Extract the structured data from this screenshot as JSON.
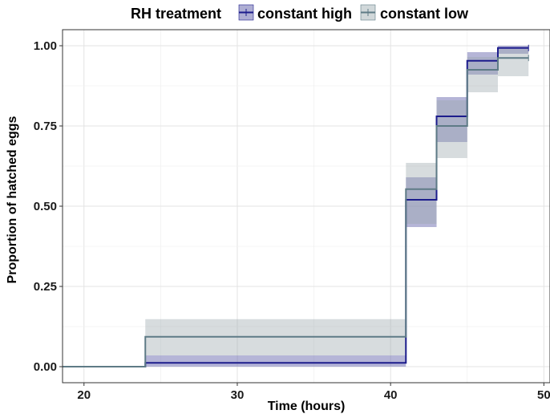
{
  "chart_data": {
    "type": "line",
    "title": "",
    "xlabel": "Time (hours)",
    "ylabel": "Proportion of hatched eggs",
    "xlim": [
      18.6,
      50.4
    ],
    "ylim": [
      -0.05,
      1.05
    ],
    "x_ticks": [
      20,
      30,
      40,
      50
    ],
    "x_tick_labels": [
      "20",
      "30",
      "40",
      "50"
    ],
    "y_ticks": [
      0,
      0.25,
      0.5,
      0.75,
      1.0
    ],
    "y_tick_labels": [
      "0.00",
      "0.25",
      "0.50",
      "0.75",
      "1.00"
    ],
    "grid": true,
    "legend_position": "top",
    "legend_title": "RH treatment",
    "series": [
      {
        "name": "constant high",
        "color": "#1c1c8c",
        "band_color": "#6b6baf",
        "x": [
          18.6,
          24,
          41,
          43,
          45,
          47,
          49
        ],
        "y": [
          0.0,
          0.012,
          0.52,
          0.78,
          0.953,
          0.993,
          0.993
        ],
        "lower": [
          0.0,
          0.0,
          0.435,
          0.7,
          0.91,
          0.975,
          0.975
        ],
        "upper": [
          0.0,
          0.035,
          0.59,
          0.84,
          0.98,
          1.0,
          1.0
        ],
        "censor_x": 49
      },
      {
        "name": "constant low",
        "color": "#5e7b86",
        "band_color": "#9aa8ad",
        "x": [
          18.6,
          24,
          41,
          43,
          45,
          47,
          49
        ],
        "y": [
          0.0,
          0.093,
          0.553,
          0.75,
          0.925,
          0.962,
          0.962
        ],
        "lower": [
          0.0,
          0.035,
          0.445,
          0.65,
          0.855,
          0.905,
          0.905
        ],
        "upper": [
          0.0,
          0.148,
          0.635,
          0.83,
          0.965,
          0.99,
          0.99
        ],
        "censor_x": 49
      }
    ]
  }
}
